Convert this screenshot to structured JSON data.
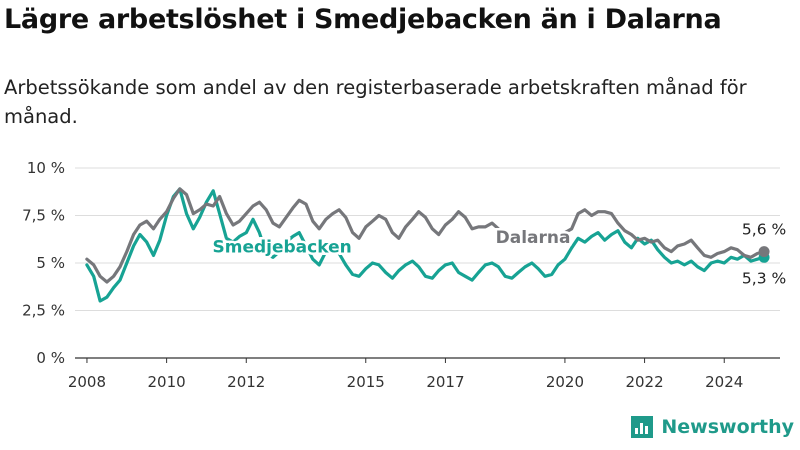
{
  "title": "Lägre arbetslöshet i Smedjebacken än i Dalarna",
  "subtitle": "Arbetssökande som andel av den registerbaserade arbetskraften månad för månad.",
  "brand": {
    "name": "Newsworthy"
  },
  "colors": {
    "smedjebacken": "#17a394",
    "dalarna": "#76777b",
    "grid": "#dddddd",
    "brand": "#1f9a8a"
  },
  "chart_data": {
    "type": "line",
    "title": "",
    "xlabel": "",
    "ylabel": "",
    "ylim": [
      0,
      10
    ],
    "xlim": [
      2007.7,
      2025.4
    ],
    "y_ticks": [
      0,
      2.5,
      5,
      7.5,
      10
    ],
    "y_tick_labels": [
      "0 %",
      "2,5 %",
      "5 %",
      "7,5 %",
      "10 %"
    ],
    "x_ticks": [
      2008,
      2010,
      2012,
      2015,
      2017,
      2020,
      2022,
      2024
    ],
    "x_tick_labels": [
      "2008",
      "2010",
      "2012",
      "2015",
      "2017",
      "2020",
      "2022",
      "2024"
    ],
    "grid": "horizontal",
    "legend": "inline labels",
    "series": [
      {
        "name": "Dalarna",
        "color": "#76777b",
        "end_label": "5,6 %",
        "points": [
          [
            2008.0,
            5.2
          ],
          [
            2008.17,
            4.9
          ],
          [
            2008.33,
            4.3
          ],
          [
            2008.5,
            4.0
          ],
          [
            2008.67,
            4.3
          ],
          [
            2008.83,
            4.8
          ],
          [
            2009.0,
            5.6
          ],
          [
            2009.17,
            6.5
          ],
          [
            2009.33,
            7.0
          ],
          [
            2009.5,
            7.2
          ],
          [
            2009.67,
            6.8
          ],
          [
            2009.83,
            7.3
          ],
          [
            2010.0,
            7.7
          ],
          [
            2010.17,
            8.4
          ],
          [
            2010.33,
            8.9
          ],
          [
            2010.5,
            8.6
          ],
          [
            2010.67,
            7.6
          ],
          [
            2010.83,
            7.8
          ],
          [
            2011.0,
            8.1
          ],
          [
            2011.17,
            8.0
          ],
          [
            2011.33,
            8.5
          ],
          [
            2011.5,
            7.6
          ],
          [
            2011.67,
            7.0
          ],
          [
            2011.83,
            7.2
          ],
          [
            2012.0,
            7.6
          ],
          [
            2012.17,
            8.0
          ],
          [
            2012.33,
            8.2
          ],
          [
            2012.5,
            7.8
          ],
          [
            2012.67,
            7.1
          ],
          [
            2012.83,
            6.9
          ],
          [
            2013.0,
            7.4
          ],
          [
            2013.17,
            7.9
          ],
          [
            2013.33,
            8.3
          ],
          [
            2013.5,
            8.1
          ],
          [
            2013.67,
            7.2
          ],
          [
            2013.83,
            6.8
          ],
          [
            2014.0,
            7.3
          ],
          [
            2014.17,
            7.6
          ],
          [
            2014.33,
            7.8
          ],
          [
            2014.5,
            7.4
          ],
          [
            2014.67,
            6.6
          ],
          [
            2014.83,
            6.3
          ],
          [
            2015.0,
            6.9
          ],
          [
            2015.17,
            7.2
          ],
          [
            2015.33,
            7.5
          ],
          [
            2015.5,
            7.3
          ],
          [
            2015.67,
            6.6
          ],
          [
            2015.83,
            6.3
          ],
          [
            2016.0,
            6.9
          ],
          [
            2016.17,
            7.3
          ],
          [
            2016.33,
            7.7
          ],
          [
            2016.5,
            7.4
          ],
          [
            2016.67,
            6.8
          ],
          [
            2016.83,
            6.5
          ],
          [
            2017.0,
            7.0
          ],
          [
            2017.17,
            7.3
          ],
          [
            2017.33,
            7.7
          ],
          [
            2017.5,
            7.4
          ],
          [
            2017.67,
            6.8
          ],
          [
            2017.83,
            6.9
          ],
          [
            2018.0,
            6.9
          ],
          [
            2018.17,
            7.1
          ],
          [
            2018.33,
            6.8
          ],
          [
            2020.0,
            6.6
          ],
          [
            2020.17,
            6.8
          ],
          [
            2020.33,
            7.6
          ],
          [
            2020.5,
            7.8
          ],
          [
            2020.67,
            7.5
          ],
          [
            2020.83,
            7.7
          ],
          [
            2021.0,
            7.7
          ],
          [
            2021.17,
            7.6
          ],
          [
            2021.33,
            7.1
          ],
          [
            2021.5,
            6.7
          ],
          [
            2021.67,
            6.5
          ],
          [
            2021.83,
            6.2
          ],
          [
            2022.0,
            6.3
          ],
          [
            2022.17,
            6.1
          ],
          [
            2022.33,
            6.2
          ],
          [
            2022.5,
            5.8
          ],
          [
            2022.67,
            5.6
          ],
          [
            2022.83,
            5.9
          ],
          [
            2023.0,
            6.0
          ],
          [
            2023.17,
            6.2
          ],
          [
            2023.33,
            5.8
          ],
          [
            2023.5,
            5.4
          ],
          [
            2023.67,
            5.3
          ],
          [
            2023.83,
            5.5
          ],
          [
            2024.0,
            5.6
          ],
          [
            2024.17,
            5.8
          ],
          [
            2024.33,
            5.7
          ],
          [
            2024.5,
            5.4
          ],
          [
            2024.67,
            5.3
          ],
          [
            2024.83,
            5.5
          ],
          [
            2025.0,
            5.6
          ]
        ]
      },
      {
        "name": "Smedjebacken",
        "color": "#17a394",
        "end_label": "5,3 %",
        "points": [
          [
            2008.0,
            4.9
          ],
          [
            2008.17,
            4.3
          ],
          [
            2008.33,
            3.0
          ],
          [
            2008.5,
            3.2
          ],
          [
            2008.67,
            3.7
          ],
          [
            2008.83,
            4.1
          ],
          [
            2009.0,
            5.0
          ],
          [
            2009.17,
            5.9
          ],
          [
            2009.33,
            6.5
          ],
          [
            2009.5,
            6.1
          ],
          [
            2009.67,
            5.4
          ],
          [
            2009.83,
            6.2
          ],
          [
            2010.0,
            7.5
          ],
          [
            2010.17,
            8.5
          ],
          [
            2010.33,
            8.9
          ],
          [
            2010.5,
            7.6
          ],
          [
            2010.67,
            6.8
          ],
          [
            2010.83,
            7.4
          ],
          [
            2011.0,
            8.2
          ],
          [
            2011.17,
            8.8
          ],
          [
            2011.33,
            7.6
          ],
          [
            2011.5,
            6.3
          ],
          [
            2011.67,
            6.1
          ],
          [
            2011.83,
            6.4
          ],
          [
            2012.0,
            6.6
          ],
          [
            2012.17,
            7.3
          ],
          [
            2012.33,
            6.6
          ],
          [
            2012.5,
            5.5
          ],
          [
            2012.67,
            5.3
          ],
          [
            2012.83,
            5.6
          ],
          [
            2013.0,
            6.1
          ],
          [
            2013.17,
            6.4
          ],
          [
            2013.33,
            6.6
          ],
          [
            2013.5,
            5.9
          ],
          [
            2013.67,
            5.2
          ],
          [
            2013.83,
            4.9
          ],
          [
            2014.0,
            5.6
          ],
          [
            2014.17,
            5.9
          ],
          [
            2014.33,
            5.5
          ],
          [
            2014.5,
            4.9
          ],
          [
            2014.67,
            4.4
          ],
          [
            2014.83,
            4.3
          ],
          [
            2015.0,
            4.7
          ],
          [
            2015.17,
            5.0
          ],
          [
            2015.33,
            4.9
          ],
          [
            2015.5,
            4.5
          ],
          [
            2015.67,
            4.2
          ],
          [
            2015.83,
            4.6
          ],
          [
            2016.0,
            4.9
          ],
          [
            2016.17,
            5.1
          ],
          [
            2016.33,
            4.8
          ],
          [
            2016.5,
            4.3
          ],
          [
            2016.67,
            4.2
          ],
          [
            2016.83,
            4.6
          ],
          [
            2017.0,
            4.9
          ],
          [
            2017.17,
            5.0
          ],
          [
            2017.33,
            4.5
          ],
          [
            2017.5,
            4.3
          ],
          [
            2017.67,
            4.1
          ],
          [
            2017.83,
            4.5
          ],
          [
            2018.0,
            4.9
          ],
          [
            2018.17,
            5.0
          ],
          [
            2018.33,
            4.8
          ],
          [
            2018.5,
            4.3
          ],
          [
            2018.67,
            4.2
          ],
          [
            2018.83,
            4.5
          ],
          [
            2019.0,
            4.8
          ],
          [
            2019.17,
            5.0
          ],
          [
            2019.33,
            4.7
          ],
          [
            2019.5,
            4.3
          ],
          [
            2019.67,
            4.4
          ],
          [
            2019.83,
            4.9
          ],
          [
            2020.0,
            5.2
          ],
          [
            2020.17,
            5.8
          ],
          [
            2020.33,
            6.3
          ],
          [
            2020.5,
            6.1
          ],
          [
            2020.67,
            6.4
          ],
          [
            2020.83,
            6.6
          ],
          [
            2021.0,
            6.2
          ],
          [
            2021.17,
            6.5
          ],
          [
            2021.33,
            6.7
          ],
          [
            2021.5,
            6.1
          ],
          [
            2021.67,
            5.8
          ],
          [
            2021.83,
            6.3
          ],
          [
            2022.0,
            6.0
          ],
          [
            2022.17,
            6.2
          ],
          [
            2022.33,
            5.7
          ],
          [
            2022.5,
            5.3
          ],
          [
            2022.67,
            5.0
          ],
          [
            2022.83,
            5.1
          ],
          [
            2023.0,
            4.9
          ],
          [
            2023.17,
            5.1
          ],
          [
            2023.33,
            4.8
          ],
          [
            2023.5,
            4.6
          ],
          [
            2023.67,
            5.0
          ],
          [
            2023.83,
            5.1
          ],
          [
            2024.0,
            5.0
          ],
          [
            2024.17,
            5.3
          ],
          [
            2024.33,
            5.2
          ],
          [
            2024.5,
            5.4
          ],
          [
            2024.67,
            5.1
          ],
          [
            2024.83,
            5.2
          ],
          [
            2025.0,
            5.3
          ]
        ]
      }
    ]
  }
}
